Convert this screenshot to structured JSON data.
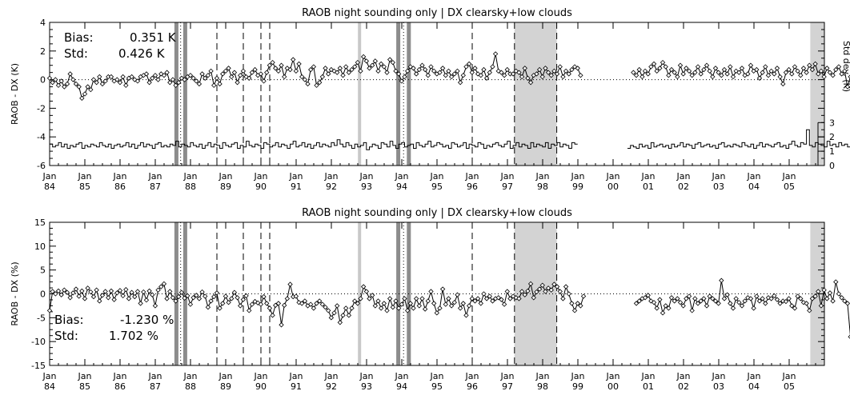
{
  "chart_data": [
    {
      "type": "line",
      "title": "RAOB night sounding only | DX clearsky+low clouds",
      "ylabel": "RAOB - DX (K)",
      "ylabel_right": "Std dev. (K)",
      "ylim": [
        -6,
        4
      ],
      "yticks": [
        -6,
        -4,
        -2,
        0,
        2,
        4
      ],
      "right_ylim": [
        0,
        3
      ],
      "right_yticks": [
        0,
        1,
        2,
        3
      ],
      "xlim": [
        1984.0,
        2006.0
      ],
      "x_tick_labels": [
        [
          "Jan",
          "84"
        ],
        [
          "Jan",
          "85"
        ],
        [
          "Jan",
          "86"
        ],
        [
          "Jan",
          "87"
        ],
        [
          "Jan",
          "88"
        ],
        [
          "Jan",
          "89"
        ],
        [
          "Jan",
          "90"
        ],
        [
          "Jan",
          "91"
        ],
        [
          "Jan",
          "92"
        ],
        [
          "Jan",
          "93"
        ],
        [
          "Jan",
          "94"
        ],
        [
          "Jan",
          "95"
        ],
        [
          "Jan",
          "96"
        ],
        [
          "Jan",
          "97"
        ],
        [
          "Jan",
          "98"
        ],
        [
          "Jan",
          "99"
        ],
        [
          "Jan",
          "00"
        ],
        [
          "Jan",
          "01"
        ],
        [
          "Jan",
          "02"
        ],
        [
          "Jan",
          "03"
        ],
        [
          "Jan",
          "04"
        ],
        [
          "Jan",
          "05"
        ]
      ],
      "annotations": [
        {
          "label": "Bias:",
          "value": "0.351 K"
        },
        {
          "label": "Std:",
          "value": "0.426 K"
        }
      ],
      "reference_line": 0,
      "shaded_spans": [
        [
          1997.2,
          1998.4
        ],
        [
          2005.6,
          2006.0
        ]
      ],
      "gray_bars": [
        1987.6,
        1987.85,
        1993.9,
        1994.2
      ],
      "light_bars": [
        1992.8
      ],
      "dotted_vlines": [
        1987.72,
        1994.05
      ],
      "dashed_vlines": [
        1988.75,
        1989.5,
        1990.0,
        1990.25,
        1996.0,
        1997.2,
        1998.4
      ],
      "gaps": [
        [
          1997.2,
          1998.6
        ]
      ],
      "series": {
        "start": 1984.0,
        "step": 0.0833,
        "values": [
          0.1,
          -0.2,
          0.0,
          -0.4,
          -0.1,
          -0.5,
          -0.3,
          0.4,
          0.0,
          -0.3,
          -0.5,
          -1.3,
          -1.0,
          -0.5,
          -0.7,
          0.0,
          -0.2,
          0.2,
          -0.3,
          -0.1,
          0.2,
          0.2,
          -0.1,
          0.0,
          -0.2,
          0.2,
          -0.4,
          0.1,
          0.2,
          0.0,
          -0.1,
          0.2,
          0.3,
          0.4,
          -0.2,
          0.1,
          0.3,
          0.0,
          0.4,
          0.3,
          0.5,
          -0.2,
          0.0,
          -0.4,
          -0.2,
          0.1,
          0.0,
          0.2,
          0.3,
          0.1,
          -0.1,
          -0.3,
          0.4,
          0.1,
          0.3,
          0.6,
          -0.4,
          0.1,
          -0.3,
          0.4,
          0.6,
          0.8,
          0.2,
          0.5,
          -0.2,
          0.3,
          0.6,
          0.2,
          0.1,
          0.5,
          0.7,
          0.3,
          0.4,
          -0.1,
          0.5,
          1.0,
          1.2,
          0.8,
          0.6,
          1.0,
          0.2,
          0.8,
          0.7,
          1.4,
          0.6,
          1.1,
          0.2,
          0.0,
          -0.3,
          0.7,
          0.9,
          -0.4,
          -0.2,
          0.2,
          0.8,
          0.4,
          0.7,
          0.6,
          0.5,
          0.8,
          0.3,
          0.9,
          0.5,
          0.7,
          0.9,
          1.2,
          0.6,
          1.6,
          1.3,
          0.8,
          1.0,
          1.3,
          0.6,
          1.1,
          0.9,
          0.5,
          1.4,
          1.2,
          0.6,
          0.4,
          -0.1,
          0.2,
          0.6,
          0.9,
          0.8,
          0.4,
          0.7,
          1.0,
          0.7,
          0.3,
          0.9,
          0.6,
          0.4,
          0.5,
          0.8,
          0.3,
          0.6,
          0.2,
          0.4,
          0.6,
          -0.2,
          0.3,
          0.9,
          1.1,
          0.5,
          0.8,
          0.4,
          0.3,
          0.7,
          0.1,
          0.5,
          0.9,
          1.8,
          0.6,
          0.5,
          0.3,
          0.7,
          0.4,
          0.4,
          0.6,
          0.5,
          0.2,
          0.8,
          0.1,
          -0.2,
          0.3,
          0.4,
          0.7,
          0.2,
          0.8,
          0.5,
          0.3,
          0.6,
          0.4,
          0.9,
          0.2,
          0.6,
          0.4,
          0.7,
          0.9,
          0.8,
          0.3,
          null,
          null,
          null,
          null,
          null,
          null,
          null,
          null,
          null,
          null,
          null,
          null,
          null,
          null,
          null,
          null,
          null,
          0.5,
          0.3,
          0.7,
          0.2,
          0.6,
          0.4,
          0.9,
          1.1,
          0.6,
          0.8,
          1.2,
          0.9,
          0.3,
          0.7,
          0.5,
          0.2,
          1.0,
          0.4,
          0.8,
          0.6,
          0.3,
          0.5,
          0.9,
          0.4,
          0.7,
          1.0,
          0.6,
          0.2,
          0.8,
          0.5,
          0.3,
          0.7,
          0.4,
          0.9,
          0.2,
          0.6,
          0.5,
          0.8,
          0.3,
          0.4,
          1.0,
          0.6,
          0.7,
          0.1,
          0.5,
          0.9,
          0.3,
          0.6,
          0.4,
          0.8,
          0.2,
          -0.3,
          0.5,
          0.7,
          0.4,
          0.9,
          0.6,
          0.3,
          0.8,
          0.5,
          1.0,
          0.7,
          1.1,
          0.4,
          0.6,
          0.2,
          0.8,
          0.5,
          0.3,
          0.7,
          0.9,
          0.4,
          0.6,
          -0.5,
          0.2,
          0.5,
          0.3,
          0.1,
          0.0
        ]
      },
      "std_series": {
        "start": 1984.0,
        "step": 0.0833,
        "values": [
          1.5,
          1.3,
          1.4,
          1.6,
          1.3,
          1.5,
          1.2,
          1.4,
          1.3,
          1.5,
          1.6,
          1.2,
          1.4,
          1.3,
          1.5,
          1.4,
          1.3,
          1.6,
          1.4,
          1.3,
          1.5,
          1.2,
          1.4,
          1.5,
          1.3,
          1.4,
          1.6,
          1.3,
          1.5,
          1.2,
          1.4,
          1.6,
          1.3,
          1.5,
          1.4,
          1.2,
          1.5,
          1.6,
          1.3,
          1.4,
          1.3,
          1.5,
          1.4,
          1.7,
          1.3,
          1.5,
          1.4,
          1.3,
          1.6,
          1.4,
          1.3,
          1.5,
          1.2,
          1.4,
          1.6,
          1.3,
          1.5,
          1.4,
          1.2,
          1.6,
          1.4,
          1.3,
          1.5,
          1.6,
          1.2,
          1.4,
          1.3,
          1.7,
          1.4,
          1.3,
          1.5,
          1.4,
          1.2,
          1.6,
          1.5,
          1.3,
          1.4,
          1.6,
          1.3,
          1.5,
          1.4,
          1.2,
          1.5,
          1.7,
          1.3,
          1.4,
          1.6,
          1.3,
          1.5,
          1.2,
          1.4,
          1.6,
          1.3,
          1.5,
          1.4,
          1.3,
          1.6,
          1.4,
          1.8,
          1.5,
          1.3,
          1.6,
          1.4,
          1.2,
          1.5,
          1.3,
          1.4,
          1.6,
          1.1,
          1.3,
          1.5,
          1.4,
          1.2,
          1.6,
          1.5,
          1.3,
          1.7,
          1.4,
          1.2,
          1.5,
          1.6,
          1.3,
          1.4,
          1.5,
          1.2,
          1.6,
          1.4,
          1.3,
          1.5,
          1.7,
          1.3,
          1.4,
          1.6,
          1.5,
          1.3,
          1.4,
          1.2,
          1.6,
          1.5,
          1.3,
          1.4,
          1.6,
          1.2,
          1.5,
          1.4,
          1.3,
          1.6,
          1.5,
          1.2,
          1.4,
          1.3,
          1.5,
          1.6,
          1.4,
          1.3,
          1.5,
          1.7,
          1.2,
          1.4,
          1.6,
          1.3,
          1.5,
          1.4,
          1.2,
          1.6,
          1.3,
          1.5,
          1.4,
          1.3,
          1.6,
          1.2,
          1.5,
          1.4,
          1.6,
          1.3,
          1.5,
          1.4,
          1.2,
          1.6,
          1.5,
          null,
          null,
          null,
          null,
          null,
          null,
          null,
          null,
          null,
          null,
          null,
          null,
          null,
          null,
          null,
          null,
          null,
          1.2,
          1.4,
          1.3,
          1.2,
          1.5,
          1.3,
          1.4,
          1.2,
          1.6,
          1.3,
          1.4,
          1.5,
          1.3,
          1.4,
          1.2,
          1.5,
          1.3,
          1.4,
          1.6,
          1.3,
          1.5,
          1.4,
          1.2,
          1.5,
          1.6,
          1.3,
          1.4,
          1.5,
          1.3,
          1.4,
          1.2,
          1.5,
          1.6,
          1.3,
          1.4,
          1.3,
          1.5,
          1.4,
          1.3,
          1.6,
          1.4,
          1.3,
          1.5,
          1.2,
          1.4,
          1.6,
          1.3,
          1.5,
          1.4,
          1.3,
          1.5,
          1.6,
          1.3,
          1.4,
          1.2,
          1.5,
          1.7,
          1.4,
          1.3,
          1.6,
          1.5,
          2.5,
          1.4,
          1.3,
          1.6,
          1.5,
          1.4,
          1.3,
          1.7,
          1.4,
          1.5,
          1.3,
          1.6,
          1.4,
          1.5,
          1.3,
          1.4,
          1.6,
          1.3,
          1.5,
          1.4,
          1.2
        ]
      }
    },
    {
      "type": "line",
      "title": "RAOB night sounding only | DX clearsky+low clouds",
      "ylabel": "RAOB - DX (%)",
      "ylim": [
        -15,
        15
      ],
      "yticks": [
        -15,
        -10,
        -5,
        0,
        5,
        10,
        15
      ],
      "xlim": [
        1984.0,
        2006.0
      ],
      "x_tick_labels": [
        [
          "Jan",
          "84"
        ],
        [
          "Jan",
          "85"
        ],
        [
          "Jan",
          "86"
        ],
        [
          "Jan",
          "87"
        ],
        [
          "Jan",
          "88"
        ],
        [
          "Jan",
          "89"
        ],
        [
          "Jan",
          "90"
        ],
        [
          "Jan",
          "91"
        ],
        [
          "Jan",
          "92"
        ],
        [
          "Jan",
          "93"
        ],
        [
          "Jan",
          "94"
        ],
        [
          "Jan",
          "95"
        ],
        [
          "Jan",
          "96"
        ],
        [
          "Jan",
          "97"
        ],
        [
          "Jan",
          "98"
        ],
        [
          "Jan",
          "99"
        ],
        [
          "Jan",
          "00"
        ],
        [
          "Jan",
          "01"
        ],
        [
          "Jan",
          "02"
        ],
        [
          "Jan",
          "03"
        ],
        [
          "Jan",
          "04"
        ],
        [
          "Jan",
          "05"
        ]
      ],
      "annotations": [
        {
          "label": "Bias:",
          "value": "-1.230 %"
        },
        {
          "label": "Std:",
          "value": "1.702 %"
        }
      ],
      "reference_line": 0,
      "shaded_spans": [
        [
          1997.2,
          1998.4
        ],
        [
          2005.6,
          2006.0
        ]
      ],
      "gray_bars": [
        1987.6,
        1987.85,
        1993.9,
        1994.2
      ],
      "light_bars": [
        1992.8
      ],
      "dotted_vlines": [
        1987.72,
        1994.05
      ],
      "dashed_vlines": [
        1988.75,
        1989.5,
        1990.0,
        1990.25,
        1996.0,
        1997.2,
        1998.4
      ],
      "gaps": [
        [
          1997.2,
          1998.6
        ]
      ],
      "series": {
        "start": 1984.0,
        "step": 0.0833,
        "values": [
          -3.5,
          0.5,
          0.0,
          0.6,
          -0.2,
          0.8,
          0.3,
          -0.8,
          0.2,
          1.0,
          -0.5,
          0.6,
          -1.0,
          1.2,
          0.4,
          -0.6,
          0.8,
          -1.5,
          -0.3,
          0.5,
          -0.8,
          0.6,
          -1.2,
          0.2,
          0.7,
          -0.4,
          0.9,
          -1.0,
          0.3,
          -0.6,
          0.5,
          -2.0,
          0.4,
          -1.3,
          0.6,
          -0.2,
          -2.5,
          0.8,
          1.5,
          2.1,
          -1.0,
          0.5,
          -0.8,
          -1.5,
          -0.6,
          0.3,
          -0.9,
          -0.4,
          -2.2,
          -0.8,
          -0.3,
          -1.0,
          0.4,
          -0.5,
          -2.8,
          -1.5,
          -0.6,
          0.2,
          -3.0,
          -2.0,
          -0.5,
          -1.8,
          -1.0,
          0.3,
          -0.8,
          -2.5,
          -1.2,
          -0.4,
          -3.5,
          -2.2,
          -1.6,
          -1.9,
          -2.2,
          -0.6,
          -2.0,
          -3.0,
          -4.5,
          -2.4,
          -2.0,
          -6.5,
          -2.4,
          -1.0,
          2.0,
          -0.6,
          -0.5,
          -1.8,
          -2.0,
          -1.5,
          -2.5,
          -2.2,
          -3.0,
          -2.0,
          -1.5,
          -2.2,
          -2.8,
          -3.5,
          -5.0,
          -4.0,
          -2.5,
          -6.0,
          -4.5,
          -3.0,
          -4.5,
          -3.0,
          -1.5,
          -2.0,
          -1.0,
          1.5,
          0.5,
          -1.0,
          -0.3,
          -2.5,
          -1.5,
          -3.0,
          -2.0,
          -3.5,
          -1.0,
          -2.8,
          -1.5,
          -3.0,
          -2.2,
          -1.0,
          -3.5,
          -2.0,
          -3.0,
          -1.0,
          -2.5,
          -1.0,
          -3.2,
          -1.5,
          0.5,
          -2.0,
          -4.0,
          -3.0,
          1.0,
          -2.2,
          -1.0,
          -2.5,
          -1.8,
          -0.2,
          -3.0,
          -2.0,
          -4.5,
          -2.5,
          -1.0,
          -1.5,
          -1.0,
          -2.0,
          0.0,
          -1.0,
          -0.5,
          -1.5,
          -1.0,
          -0.8,
          -1.2,
          -2.2,
          0.5,
          -1.0,
          -0.5,
          -0.8,
          -1.0,
          0.5,
          -0.2,
          0.6,
          2.1,
          -0.8,
          0.4,
          1.0,
          1.8,
          0.5,
          1.2,
          0.8,
          2.0,
          1.5,
          0.5,
          -1.0,
          1.5,
          0.0,
          -2.0,
          -3.5,
          -2.0,
          -2.5,
          -0.5,
          null,
          null,
          null,
          null,
          null,
          null,
          null,
          null,
          null,
          null,
          null,
          null,
          null,
          null,
          null,
          null,
          null,
          -2.0,
          -1.5,
          -1.0,
          -0.8,
          -0.3,
          -1.5,
          -1.8,
          -3.0,
          -1.2,
          -4.0,
          -2.5,
          -3.0,
          -0.8,
          -1.5,
          -1.0,
          -1.8,
          -2.5,
          -1.0,
          -0.5,
          -3.5,
          -1.0,
          -2.0,
          -1.5,
          -1.0,
          -2.5,
          -0.5,
          -1.0,
          -1.5,
          -2.0,
          2.8,
          -1.0,
          -0.2,
          -2.0,
          -3.0,
          -1.0,
          -1.8,
          -2.5,
          -1.5,
          -0.8,
          -1.0,
          -3.0,
          -0.5,
          -1.5,
          -1.0,
          -2.0,
          -0.8,
          -1.0,
          -0.4,
          -1.2,
          -2.0,
          -1.5,
          -1.6,
          -1.0,
          -2.5,
          -3.0,
          -0.5,
          -1.0,
          -1.8,
          -2.0,
          -3.5,
          -1.0,
          -0.5,
          0.5,
          -2.5,
          0.8,
          -1.0,
          0.2,
          -1.5,
          2.5,
          0.0,
          -0.8,
          -1.5,
          -2.0,
          -9.0,
          -0.3,
          -0.5,
          -1.8,
          -1.0,
          0.0,
          -2.0,
          -2.5,
          -1.5,
          0.3,
          1.8,
          -1.0,
          -0.5,
          -2.0,
          -3.0,
          -1.5,
          -0.8,
          -1.5,
          -0.2
        ]
      }
    }
  ]
}
